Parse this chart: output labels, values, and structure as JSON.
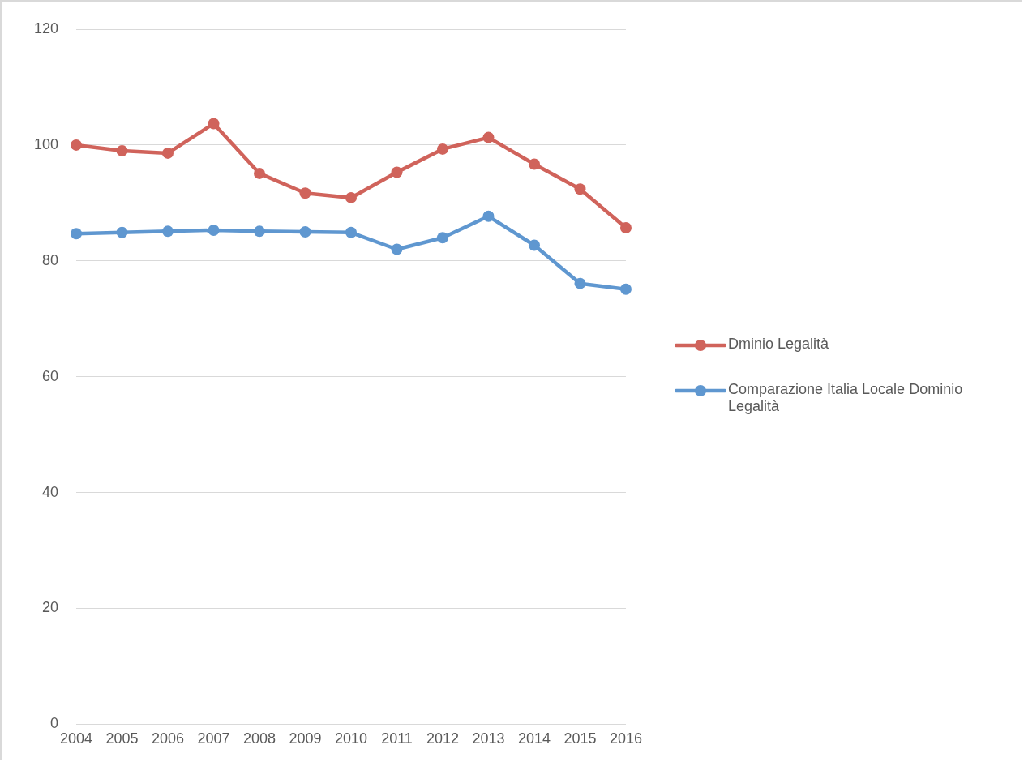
{
  "chart_data": {
    "type": "line",
    "categories": [
      "2004",
      "2005",
      "2006",
      "2007",
      "2008",
      "2009",
      "2010",
      "2011",
      "2012",
      "2013",
      "2014",
      "2015",
      "2016"
    ],
    "series": [
      {
        "name": "Dminio Legalità",
        "color": "#d0635b",
        "values": [
          100,
          99.0,
          98.6,
          103.7,
          95.1,
          91.7,
          90.9,
          95.3,
          99.3,
          101.3,
          96.7,
          92.4,
          85.7
        ]
      },
      {
        "name": "Comparazione Italia Locale Dominio Legalità",
        "color": "#5f97d0",
        "values": [
          84.7,
          84.9,
          85.1,
          85.3,
          85.1,
          85.0,
          84.9,
          82.0,
          84.0,
          87.7,
          82.7,
          76.1,
          75.1
        ]
      }
    ],
    "ylim": [
      0,
      120
    ],
    "yticks": [
      0,
      20,
      40,
      60,
      80,
      100,
      120
    ],
    "grid": "y",
    "legend": "right",
    "marker": "circle",
    "line_style": "solid"
  }
}
